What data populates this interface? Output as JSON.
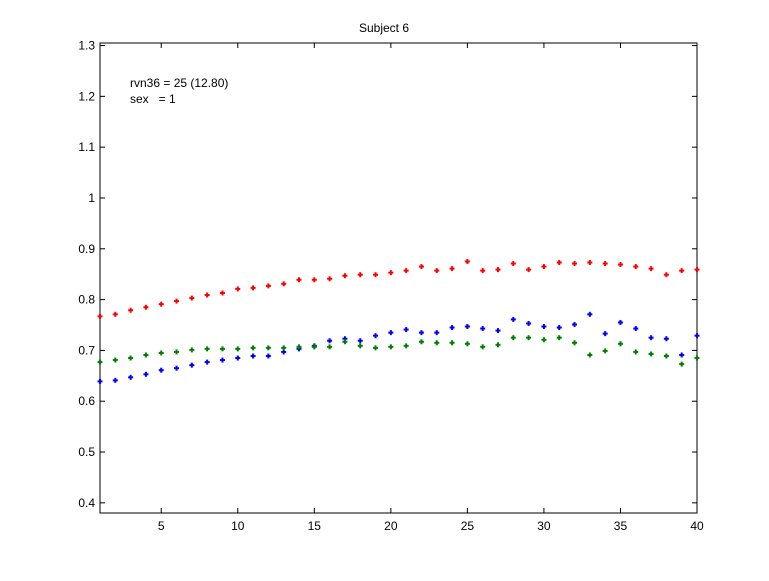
{
  "chart_data": {
    "type": "scatter",
    "title": "Subject 6",
    "xlabel": "",
    "ylabel": "",
    "xlim": [
      1,
      40
    ],
    "ylim": [
      0.38,
      1.305
    ],
    "xticks": [
      5,
      10,
      15,
      20,
      25,
      30,
      35,
      40
    ],
    "yticks": [
      0.4,
      0.5,
      0.6,
      0.7,
      0.8,
      0.9,
      1,
      1.1,
      1.2,
      1.3
    ],
    "grid": false,
    "annotations": [
      "rvn36 = 25 (12.80)",
      "sex   = 1"
    ],
    "x": [
      1,
      2,
      3,
      4,
      5,
      6,
      7,
      8,
      9,
      10,
      11,
      12,
      13,
      14,
      15,
      16,
      17,
      18,
      19,
      20,
      21,
      22,
      23,
      24,
      25,
      26,
      27,
      28,
      29,
      30,
      31,
      32,
      33,
      34,
      35,
      36,
      37,
      38,
      39,
      40
    ],
    "series": [
      {
        "color": "#ff0000",
        "marker": "+",
        "values": [
          0.767,
          0.771,
          0.779,
          0.785,
          0.791,
          0.797,
          0.803,
          0.809,
          0.813,
          0.821,
          0.823,
          0.827,
          0.831,
          0.839,
          0.839,
          0.841,
          0.847,
          0.849,
          0.849,
          0.853,
          0.857,
          0.865,
          0.857,
          0.861,
          0.875,
          0.857,
          0.859,
          0.871,
          0.859,
          0.865,
          0.873,
          0.871,
          0.873,
          0.871,
          0.869,
          0.865,
          0.861,
          0.849,
          0.857,
          0.859
        ]
      },
      {
        "color": "#0000ff",
        "marker": "+",
        "values": [
          0.639,
          0.641,
          0.647,
          0.653,
          0.661,
          0.665,
          0.671,
          0.677,
          0.681,
          0.685,
          0.689,
          0.689,
          0.697,
          0.703,
          0.709,
          0.719,
          0.723,
          0.719,
          0.729,
          0.735,
          0.741,
          0.735,
          0.735,
          0.745,
          0.747,
          0.743,
          0.739,
          0.761,
          0.753,
          0.747,
          0.745,
          0.751,
          0.771,
          0.733,
          0.755,
          0.743,
          0.725,
          0.723,
          0.691,
          0.729
        ]
      },
      {
        "color": "#008000",
        "marker": "+",
        "values": [
          0.677,
          0.681,
          0.685,
          0.691,
          0.695,
          0.697,
          0.701,
          0.703,
          0.703,
          0.703,
          0.705,
          0.705,
          0.705,
          0.707,
          0.707,
          0.707,
          0.717,
          0.709,
          0.705,
          0.707,
          0.709,
          0.717,
          0.715,
          0.715,
          0.713,
          0.707,
          0.711,
          0.725,
          0.725,
          0.721,
          0.725,
          0.715,
          0.691,
          0.699,
          0.713,
          0.697,
          0.693,
          0.689,
          0.673,
          0.685
        ]
      }
    ]
  }
}
